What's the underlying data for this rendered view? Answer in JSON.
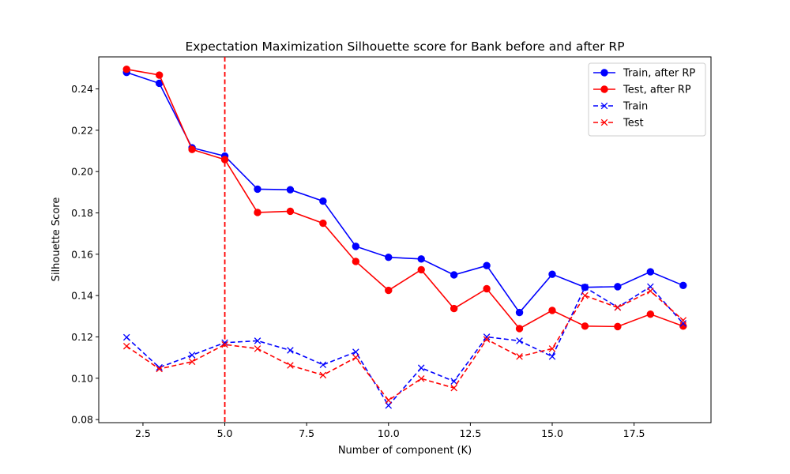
{
  "chart_data": {
    "type": "line",
    "title": "Expectation Maximization Silhouette score for Bank before and after RP",
    "xlabel": "Number of component (K)",
    "ylabel": "Silhouette Score",
    "xlim": [
      1.15,
      19.85
    ],
    "ylim": [
      0.0785,
      0.2555
    ],
    "xticks": [
      2.5,
      5.0,
      7.5,
      10.0,
      12.5,
      15.0,
      17.5
    ],
    "xtick_labels": [
      "2.5",
      "5.0",
      "7.5",
      "10.0",
      "12.5",
      "15.0",
      "17.5"
    ],
    "yticks": [
      0.08,
      0.1,
      0.12,
      0.14,
      0.16,
      0.18,
      0.2,
      0.22,
      0.24
    ],
    "ytick_labels": [
      "0.08",
      "0.10",
      "0.12",
      "0.14",
      "0.16",
      "0.18",
      "0.20",
      "0.22",
      "0.24"
    ],
    "grid": false,
    "legend_position": "top-right",
    "x": [
      2,
      3,
      4,
      5,
      6,
      7,
      8,
      9,
      10,
      11,
      12,
      13,
      14,
      15,
      16,
      17,
      18,
      19
    ],
    "series": [
      {
        "name": "Train, after RP",
        "color": "#0000ff",
        "linestyle": "solid",
        "marker": "circle",
        "values": [
          0.248,
          0.2427,
          0.2115,
          0.2075,
          0.1915,
          0.1912,
          0.1857,
          0.1638,
          0.1585,
          0.1577,
          0.15,
          0.1545,
          0.1318,
          0.1503,
          0.144,
          0.1443,
          0.1515,
          0.1449
        ]
      },
      {
        "name": "Test, after RP",
        "color": "#ff0000",
        "linestyle": "solid",
        "marker": "circle",
        "values": [
          0.2495,
          0.2467,
          0.2107,
          0.2058,
          0.1802,
          0.1808,
          0.175,
          0.1565,
          0.1425,
          0.1525,
          0.1337,
          0.1433,
          0.124,
          0.1328,
          0.1252,
          0.125,
          0.131,
          0.1252
        ]
      },
      {
        "name": "Train",
        "color": "#0000ff",
        "linestyle": "dashed",
        "marker": "x",
        "values": [
          0.1198,
          0.1052,
          0.1112,
          0.1172,
          0.1181,
          0.1135,
          0.1065,
          0.1127,
          0.0868,
          0.105,
          0.0985,
          0.12,
          0.1181,
          0.1105,
          0.144,
          0.1343,
          0.1443,
          0.1265
        ]
      },
      {
        "name": "Test",
        "color": "#ff0000",
        "linestyle": "dashed",
        "marker": "x",
        "values": [
          0.1155,
          0.1045,
          0.108,
          0.1163,
          0.1143,
          0.1062,
          0.1015,
          0.11,
          0.0893,
          0.0998,
          0.0953,
          0.1188,
          0.1105,
          0.1143,
          0.14,
          0.1342,
          0.1422,
          0.128
        ]
      }
    ],
    "vlines": [
      {
        "x": 5,
        "color": "#ff0000",
        "linestyle": "dashed"
      }
    ]
  }
}
